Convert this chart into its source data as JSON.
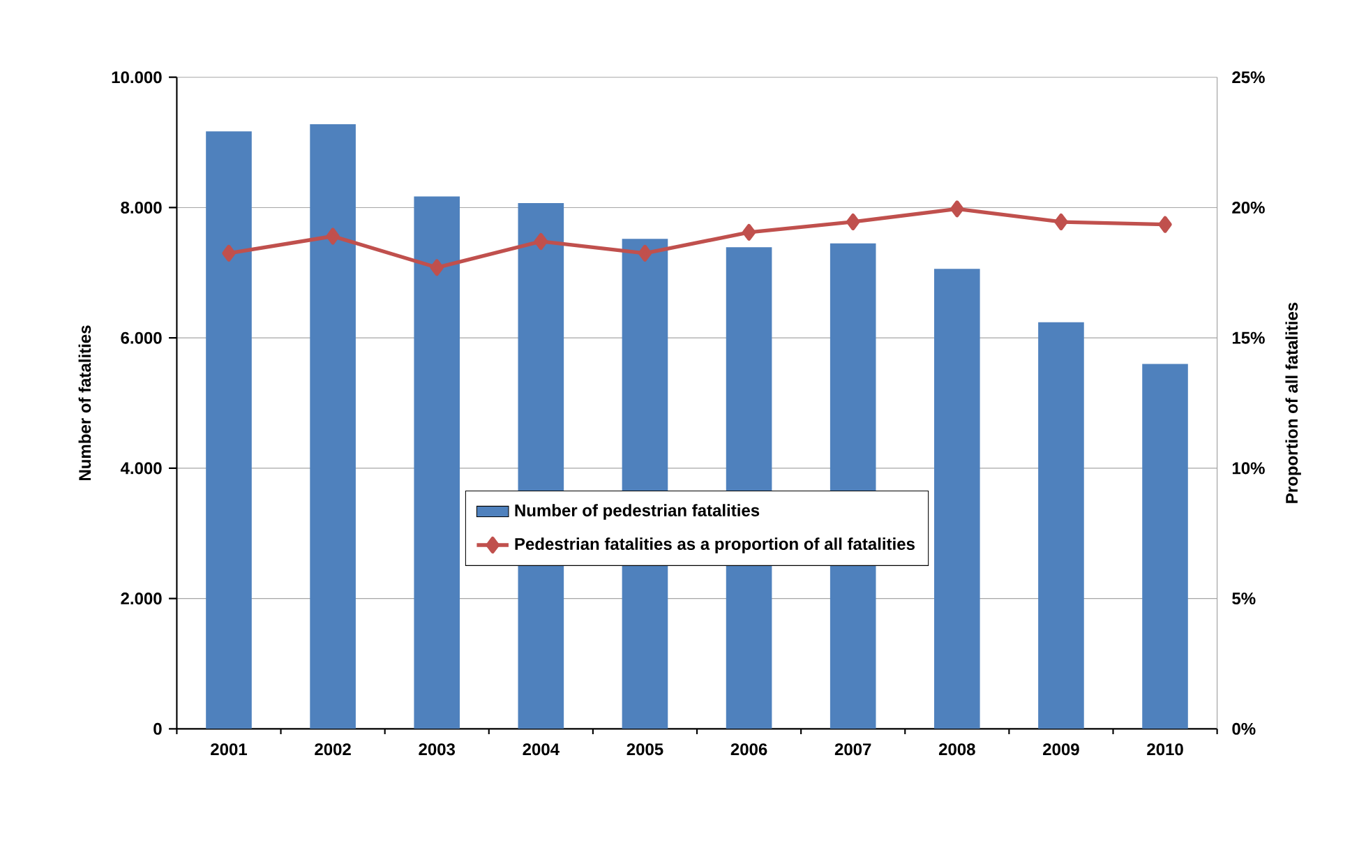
{
  "chart_data": {
    "type": "bar",
    "categories": [
      "2001",
      "2002",
      "2003",
      "2004",
      "2005",
      "2006",
      "2007",
      "2008",
      "2009",
      "2010"
    ],
    "series": [
      {
        "name": "Number of pedestrian fatalities",
        "color": "#4f81bd",
        "values": [
          9170,
          9280,
          8170,
          8070,
          7520,
          7390,
          7450,
          7060,
          6240,
          5600
        ]
      },
      {
        "name": "Pedestrian fatalities as a proportion of all fatalities",
        "type": "line",
        "axis": "y2",
        "color": "#c0504d",
        "values": [
          18.25,
          18.9,
          17.7,
          18.7,
          18.25,
          19.05,
          19.45,
          19.95,
          19.45,
          19.35
        ]
      }
    ],
    "ylabel": "Number of fatalities",
    "y2label": "Proportion of all fatalities",
    "ylim": [
      0,
      10000
    ],
    "yticks": [
      0,
      {
        "value": 2000,
        "label": "2.000"
      },
      {
        "value": 4000,
        "label": "4.000"
      },
      {
        "value": 6000,
        "label": "6.000"
      },
      {
        "value": 8000,
        "label": "8.000"
      },
      {
        "value": 10000,
        "label": "10.000"
      }
    ],
    "y2lim": [
      0,
      25
    ],
    "y2ticks": [
      {
        "value": 0,
        "label": "0%"
      },
      {
        "value": 5,
        "label": "5%"
      },
      {
        "value": 10,
        "label": "10%"
      },
      {
        "value": 15,
        "label": "15%"
      },
      {
        "value": 20,
        "label": "20%"
      },
      {
        "value": 25,
        "label": "25%"
      }
    ],
    "grid": "y",
    "legend": "bottom",
    "marker": "diamond",
    "line_style": "solid"
  }
}
